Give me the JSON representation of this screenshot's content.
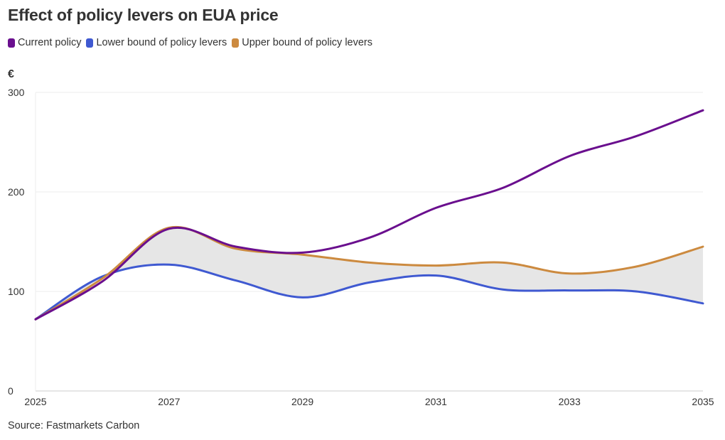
{
  "chart_data": {
    "type": "line",
    "title": "Effect of policy levers on EUA price",
    "ylabel": "€",
    "xlabel": "",
    "source": "Source: Fastmarkets Carbon",
    "xlim": [
      2025,
      2035
    ],
    "ylim": [
      0,
      300
    ],
    "x_ticks": [
      "2025",
      "2027",
      "2029",
      "2031",
      "2033",
      "2035"
    ],
    "y_ticks": [
      "0",
      "100",
      "200",
      "300"
    ],
    "shaded_band": "between Lower bound and Upper bound of policy levers",
    "band_color": "#e6e6e6",
    "x": [
      2025,
      2026,
      2027,
      2028,
      2029,
      2030,
      2031,
      2032,
      2033,
      2034,
      2035
    ],
    "series": [
      {
        "name": "Current policy",
        "color": "#6a0f8e",
        "values": [
          72,
          110,
          163,
          145,
          139,
          154,
          184,
          204,
          236,
          256,
          282
        ]
      },
      {
        "name": "Lower bound of policy levers",
        "color": "#3f59d1",
        "values": [
          72,
          115,
          127,
          111,
          94,
          109,
          116,
          102,
          101,
          100,
          88
        ]
      },
      {
        "name": "Upper bound of policy levers",
        "color": "#cc8a3f",
        "values": [
          72,
          113,
          164,
          143,
          137,
          129,
          126,
          129,
          118,
          125,
          145
        ]
      }
    ]
  }
}
